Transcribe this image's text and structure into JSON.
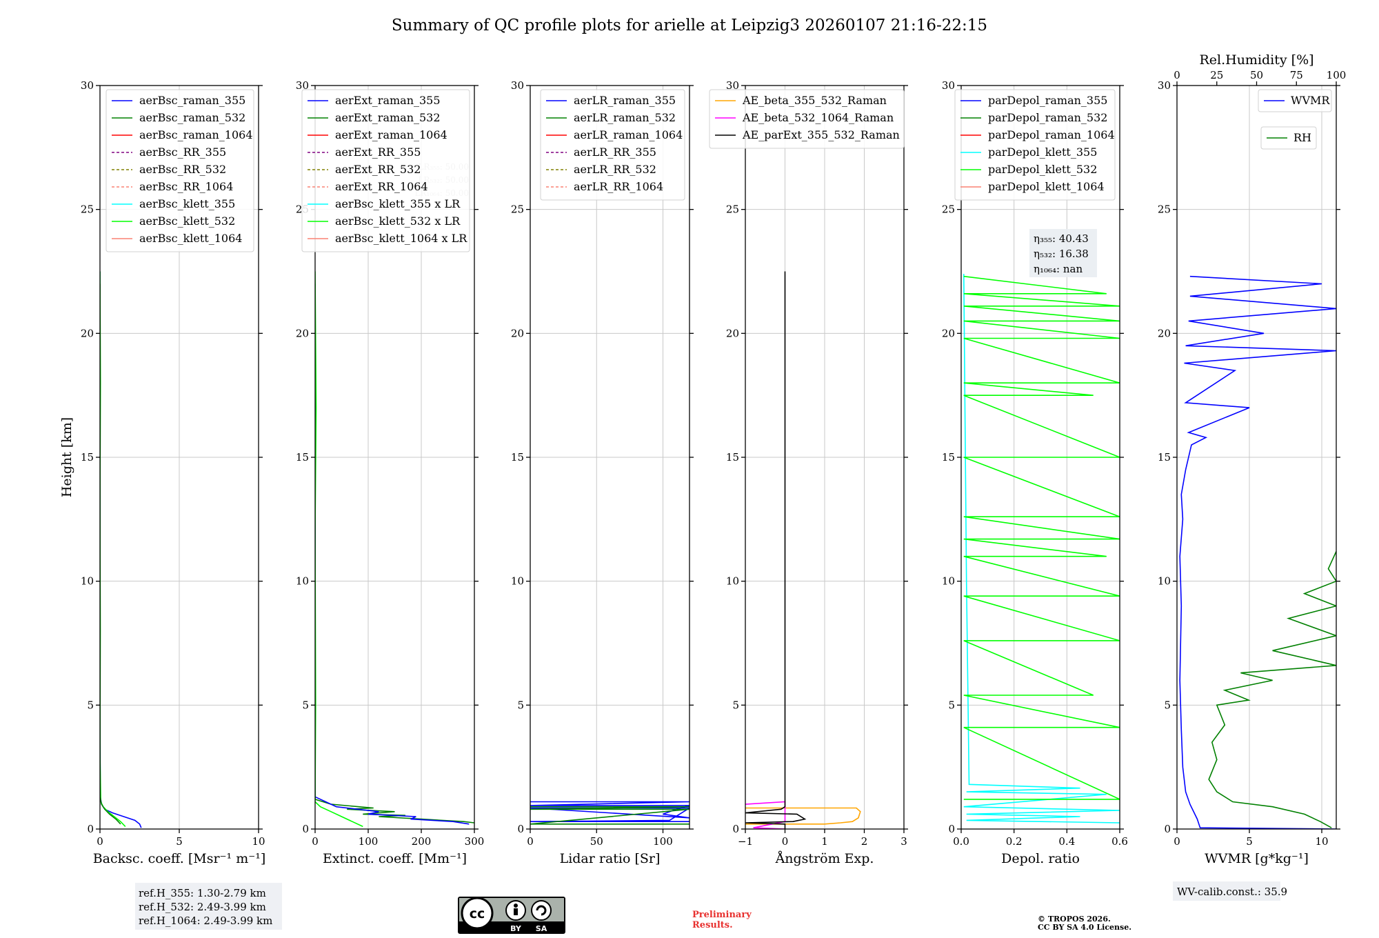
{
  "title": "Summary of QC profile plots for arielle at Leipzig3 20260107 21:16-22:15",
  "colors": {
    "raman_355": "#0000ff",
    "raman_532": "#008000",
    "raman_1064": "#ff0000",
    "rr_355": "#800080",
    "rr_532": "#808000",
    "rr_1064": "#fa8072",
    "klett_355": "#00ffff",
    "klett_532": "#00ff00",
    "klett_1064": "#fa8072",
    "ae_beta_355_532": "#ffa500",
    "ae_beta_532_1064": "#ff00ff",
    "ae_parext": "#000000",
    "wvmr": "#0000ff",
    "rh": "#008000",
    "grid": "#c8c8c8",
    "prelim": "#e8312f"
  },
  "chart_data": [
    {
      "type": "line",
      "id": "backscatter",
      "ylabel": "Height [km]",
      "xlabel": "Backsc. coeff. [Msr⁻¹ m⁻¹]",
      "xlim": [
        0,
        10
      ],
      "ylim": [
        0,
        30
      ],
      "xticks": [
        0,
        5,
        10
      ],
      "yticks": [
        0,
        5,
        10,
        15,
        20,
        25,
        30
      ],
      "legend": [
        "aerBsc_raman_355",
        "aerBsc_raman_532",
        "aerBsc_raman_1064",
        "aerBsc_RR_355",
        "aerBsc_RR_532",
        "aerBsc_RR_1064",
        "aerBsc_klett_355",
        "aerBsc_klett_532",
        "aerBsc_klett_1064"
      ],
      "legend_styles": [
        "raman_355",
        "raman_532",
        "raman_1064",
        "rr_355",
        "rr_532",
        "rr_1064",
        "klett_355",
        "klett_532",
        "klett_1064"
      ],
      "legend_dashed": [
        false,
        false,
        false,
        true,
        true,
        true,
        false,
        false,
        false
      ],
      "legend_position": "top-right",
      "series": [
        {
          "name": "aerBsc_raman_355",
          "color": "raman_355",
          "x": [
            2.6,
            2.5,
            2.2,
            1.5,
            0.8,
            0.3,
            0.1,
            0.02,
            0.0,
            0.0
          ],
          "y": [
            0.05,
            0.2,
            0.35,
            0.5,
            0.65,
            0.8,
            1.0,
            1.3,
            5,
            22.5
          ]
        },
        {
          "name": "aerBsc_klett_532",
          "color": "klett_532",
          "x": [
            1.6,
            1.3,
            0.9,
            0.5,
            0.2,
            0.05,
            0.0,
            0.02,
            0.0,
            0.03,
            0.0
          ],
          "y": [
            0.1,
            0.3,
            0.5,
            0.7,
            0.9,
            1.1,
            3,
            8,
            13,
            18,
            22.5
          ]
        },
        {
          "name": "aerBsc_raman_532",
          "color": "raman_532",
          "x": [
            1.3,
            1.0,
            0.6,
            0.3,
            0.1,
            0.0,
            0.0
          ],
          "y": [
            0.2,
            0.4,
            0.6,
            0.8,
            1.0,
            1.3,
            22
          ]
        }
      ],
      "notes": [
        "ref.H_355: 1.30-2.79 km",
        "ref.H_532: 2.49-3.99 km",
        "ref.H_1064: 2.49-3.99 km"
      ]
    },
    {
      "type": "line",
      "id": "extinction",
      "xlabel": "Extinct. coeff. [Mm⁻¹]",
      "xlim": [
        0,
        300
      ],
      "ylim": [
        0,
        30
      ],
      "xticks": [
        0,
        100,
        200,
        300
      ],
      "yticks": [
        0,
        5,
        10,
        15,
        20,
        25,
        30
      ],
      "legend": [
        "aerExt_raman_355",
        "aerExt_raman_532",
        "aerExt_raman_1064",
        "aerExt_RR_355",
        "aerExt_RR_532",
        "aerExt_RR_1064",
        "aerBsc_klett_355 x LR",
        "aerBsc_klett_532 x LR",
        "aerBsc_klett_1064 x LR"
      ],
      "legend_styles": [
        "raman_355",
        "raman_532",
        "raman_1064",
        "rr_355",
        "rr_532",
        "rr_1064",
        "klett_355",
        "klett_532",
        "klett_1064"
      ],
      "legend_dashed": [
        false,
        false,
        false,
        true,
        true,
        true,
        false,
        false,
        false
      ],
      "legend_position": "top-right",
      "behind_legend": [
        "LR₃₅₅: 50.00",
        "LR₅₃₂: 50.00",
        "LR₁₀₆₄: 50.00"
      ],
      "series": [
        {
          "name": "aerExt_raman_532",
          "color": "raman_532",
          "x": [
            300,
            280,
            200,
            120,
            170,
            90,
            150,
            60,
            110,
            30,
            0,
            0
          ],
          "y": [
            0.25,
            0.3,
            0.4,
            0.5,
            0.55,
            0.6,
            0.7,
            0.8,
            0.85,
            1.0,
            1.2,
            22
          ]
        },
        {
          "name": "aerExt_raman_355",
          "color": "raman_355",
          "x": [
            290,
            260,
            180,
            190,
            100,
            120,
            40,
            20,
            0,
            0
          ],
          "y": [
            0.2,
            0.3,
            0.4,
            0.5,
            0.6,
            0.7,
            0.9,
            1.1,
            1.3,
            22
          ]
        },
        {
          "name": "aerBsc_klett_532 x LR",
          "color": "klett_532",
          "x": [
            90,
            70,
            50,
            30,
            10,
            0,
            1,
            0,
            2,
            0
          ],
          "y": [
            0.1,
            0.3,
            0.5,
            0.7,
            0.9,
            1.1,
            5,
            12,
            17,
            22.5
          ]
        }
      ]
    },
    {
      "type": "line",
      "id": "lidar_ratio",
      "xlabel": "Lidar ratio [Sr]",
      "xlim": [
        0,
        120
      ],
      "ylim": [
        0,
        30
      ],
      "xticks": [
        0,
        50,
        100
      ],
      "yticks": [
        0,
        5,
        10,
        15,
        20,
        25,
        30
      ],
      "legend": [
        "aerLR_raman_355",
        "aerLR_raman_532",
        "aerLR_raman_1064",
        "aerLR_RR_355",
        "aerLR_RR_532",
        "aerLR_RR_1064"
      ],
      "legend_styles": [
        "raman_355",
        "raman_532",
        "raman_1064",
        "rr_355",
        "rr_532",
        "rr_1064"
      ],
      "legend_dashed": [
        false,
        false,
        false,
        true,
        true,
        true
      ],
      "legend_position": "top-right",
      "series": [
        {
          "name": "aerLR_raman_355",
          "color": "raman_355",
          "x": [
            0,
            120,
            0,
            120,
            110,
            100,
            120,
            0,
            120,
            105,
            0,
            120
          ],
          "y": [
            1.1,
            1.1,
            0.95,
            0.95,
            0.8,
            0.6,
            0.45,
            0.85,
            0.85,
            0.35,
            0.3,
            0.3
          ]
        },
        {
          "name": "aerLR_raman_532",
          "color": "raman_532",
          "x": [
            0,
            120,
            0,
            120,
            0,
            120
          ],
          "y": [
            0.9,
            0.9,
            0.8,
            0.8,
            0.2,
            0.2
          ]
        }
      ]
    },
    {
      "type": "line",
      "id": "angstrom",
      "xlabel": "Ångström Exp.",
      "xlim": [
        -1,
        3
      ],
      "ylim": [
        0,
        30
      ],
      "xticks": [
        -1,
        0,
        1,
        2,
        3
      ],
      "yticks": [
        0,
        5,
        10,
        15,
        20,
        25,
        30
      ],
      "legend": [
        "AE_beta_355_532_Raman",
        "AE_beta_532_1064_Raman",
        "AE_parExt_355_532_Raman"
      ],
      "legend_styles": [
        "ae_beta_355_532",
        "ae_beta_532_1064",
        "ae_parext"
      ],
      "legend_dashed": [
        false,
        false,
        false
      ],
      "legend_position": "top-right",
      "series": [
        {
          "name": "AE_beta_355_532_Raman",
          "color": "ae_beta_355_532",
          "x": [
            -1,
            1.8,
            1.9,
            1.85,
            1.7,
            1.4,
            1.0,
            -1
          ],
          "y": [
            0.85,
            0.85,
            0.7,
            0.45,
            0.3,
            0.25,
            0.2,
            0.2
          ]
        },
        {
          "name": "AE_beta_532_1064_Raman",
          "color": "ae_beta_532_1064",
          "x": [
            -1,
            0,
            0,
            -0.8,
            0
          ],
          "y": [
            1.0,
            1.1,
            0.3,
            0.05,
            0.0
          ]
        },
        {
          "name": "AE_parExt_355_532_Raman",
          "color": "ae_parext",
          "x": [
            0,
            0,
            -0.1,
            -1,
            0.3,
            0.5,
            0.2,
            -1,
            0,
            0
          ],
          "y": [
            22.5,
            0.9,
            0.8,
            0.65,
            0.6,
            0.4,
            0.3,
            0.25,
            0.2,
            0.0
          ]
        }
      ]
    },
    {
      "type": "line",
      "id": "depol",
      "xlabel": "Depol. ratio",
      "xlim": [
        0,
        0.6
      ],
      "ylim": [
        0,
        30
      ],
      "xticks": [
        0.0,
        0.2,
        0.4,
        0.6
      ],
      "xtick_labels": [
        "0.0",
        "0.2",
        "0.4",
        "0.6"
      ],
      "yticks": [
        0,
        5,
        10,
        15,
        20,
        25,
        30
      ],
      "legend": [
        "parDepol_raman_355",
        "parDepol_raman_532",
        "parDepol_raman_1064",
        "parDepol_klett_355",
        "parDepol_klett_532",
        "parDepol_klett_1064"
      ],
      "legend_styles": [
        "raman_355",
        "raman_532",
        "raman_1064",
        "klett_355",
        "klett_532",
        "klett_1064"
      ],
      "legend_dashed": [
        false,
        false,
        false,
        false,
        false,
        false
      ],
      "legend_position": "top-right",
      "eta": [
        "η₃₅₅: 40.43",
        "η₅₃₂: 16.38",
        "η₁₀₆₄: nan"
      ],
      "series": [
        {
          "name": "parDepol_klett_355",
          "color": "klett_355",
          "x": [
            0.6,
            0.02,
            0.45,
            0.02,
            0.6,
            0.01,
            0.55,
            0.02,
            0.45,
            0.03,
            0.02,
            0.01
          ],
          "y": [
            0.25,
            0.35,
            0.5,
            0.6,
            0.75,
            0.9,
            1.4,
            1.5,
            1.65,
            1.8,
            10,
            22.4
          ]
        },
        {
          "name": "parDepol_klett_532",
          "color": "klett_532",
          "x": [
            0.01,
            0.6,
            0.01,
            0.6,
            0.01,
            0.5,
            0.01,
            0.6,
            0.01,
            0.6,
            0.01,
            0.55,
            0.01,
            0.6,
            0.01,
            0.6,
            0.01,
            0.6,
            0.01,
            0.5,
            0.01,
            0.6,
            0.01,
            0.6,
            0.01,
            0.6,
            0.01,
            0.6,
            0.01,
            0.55,
            0.01
          ],
          "y": [
            1.2,
            1.2,
            4.1,
            4.1,
            5.4,
            5.4,
            7.6,
            7.6,
            9.4,
            9.4,
            11,
            11,
            11.7,
            11.7,
            12.6,
            12.6,
            15,
            15,
            17.5,
            17.5,
            18,
            18,
            19.8,
            19.8,
            20.5,
            20.5,
            21.1,
            21.1,
            21.6,
            21.6,
            22.3
          ]
        }
      ]
    },
    {
      "type": "line",
      "id": "wvmr",
      "xlabel": "WVMR [g*kg⁻¹]",
      "xlim": [
        0,
        11
      ],
      "ylim": [
        0,
        30
      ],
      "xticks": [
        0,
        5,
        10
      ],
      "yticks": [
        0,
        5,
        10,
        15,
        20,
        25,
        30
      ],
      "top_axis": {
        "label": "Rel.Humidity [%]",
        "ticks": [
          0,
          25,
          50,
          75,
          100
        ],
        "range": [
          0,
          100
        ]
      },
      "legend": [
        "WVMR",
        "RH"
      ],
      "legend_styles": [
        "wvmr",
        "rh"
      ],
      "legend_dashed": [
        false,
        false
      ],
      "legend_position": "top-right",
      "series": [
        {
          "name": "WVMR",
          "color": "wvmr",
          "x": [
            11,
            1.6,
            1.4,
            0.9,
            0.6,
            0.4,
            0.3,
            0.2,
            0.3,
            0.2,
            0.4,
            0.3,
            0.6,
            1.0,
            2.0,
            0.8,
            5.0,
            0.6,
            4.0,
            0.5,
            11,
            0.6,
            6.0,
            0.8,
            11,
            0.9,
            10,
            0.9
          ],
          "y": [
            0.0,
            0.05,
            0.4,
            1.0,
            1.5,
            2.5,
            4.0,
            6.0,
            9.0,
            11.0,
            12.5,
            13.5,
            14.5,
            15.5,
            15.8,
            16.0,
            17.0,
            17.2,
            18.5,
            18.8,
            19.3,
            19.5,
            20.0,
            20.5,
            21.0,
            21.5,
            22.0,
            22.3
          ]
        },
        {
          "name": "RH",
          "color": "rh",
          "x": [
            97,
            90,
            80,
            60,
            35,
            25,
            20,
            25,
            22,
            30,
            25,
            45,
            30,
            60,
            40,
            100,
            60,
            100,
            70,
            100,
            80,
            100,
            95,
            100
          ],
          "y": [
            0.05,
            0.3,
            0.6,
            0.9,
            1.1,
            1.5,
            2.0,
            2.8,
            3.5,
            4.2,
            5.0,
            5.2,
            5.6,
            6.0,
            6.3,
            6.6,
            7.2,
            7.8,
            8.5,
            9.0,
            9.5,
            10.0,
            10.5,
            11.2
          ]
        }
      ],
      "note": "WV-calib.const.: 35.9"
    }
  ],
  "footer": {
    "cc_by": "BY",
    "cc_sa": "SA",
    "preliminary": [
      "Preliminary",
      "Results."
    ],
    "copyright": [
      "© TROPOS 2026.",
      "CC BY SA 4.0 License."
    ]
  }
}
